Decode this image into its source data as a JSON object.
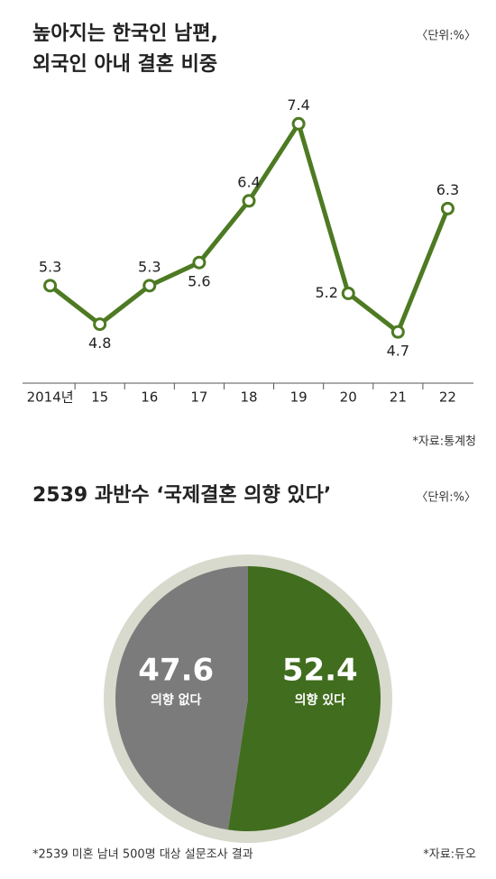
{
  "chart_data": [
    {
      "type": "line",
      "title": [
        "높아지는 한국인 남편,",
        "외국인 아내 결혼 비중"
      ],
      "unit": "〈단위:%〉",
      "source": "*자료:통계청",
      "categories": [
        "2014년",
        "15",
        "16",
        "17",
        "18",
        "19",
        "20",
        "21",
        "22"
      ],
      "values": [
        5.3,
        4.8,
        5.3,
        5.6,
        6.4,
        7.4,
        5.2,
        4.7,
        6.3
      ],
      "color": "#4d7a22",
      "ylim": [
        4,
        8
      ]
    },
    {
      "type": "pie",
      "title": "2539 과반수 ‘국제결혼 의향 있다’",
      "unit": "〈단위:%〉",
      "categories": [
        "의향 있다",
        "의향 없다"
      ],
      "values": [
        52.4,
        47.6
      ],
      "colors": [
        "#416d1e",
        "#7b7b7b"
      ],
      "note": "*2539 미혼 남녀 500명 대상 설문조사 결과",
      "source": "*자료:듀오"
    }
  ]
}
